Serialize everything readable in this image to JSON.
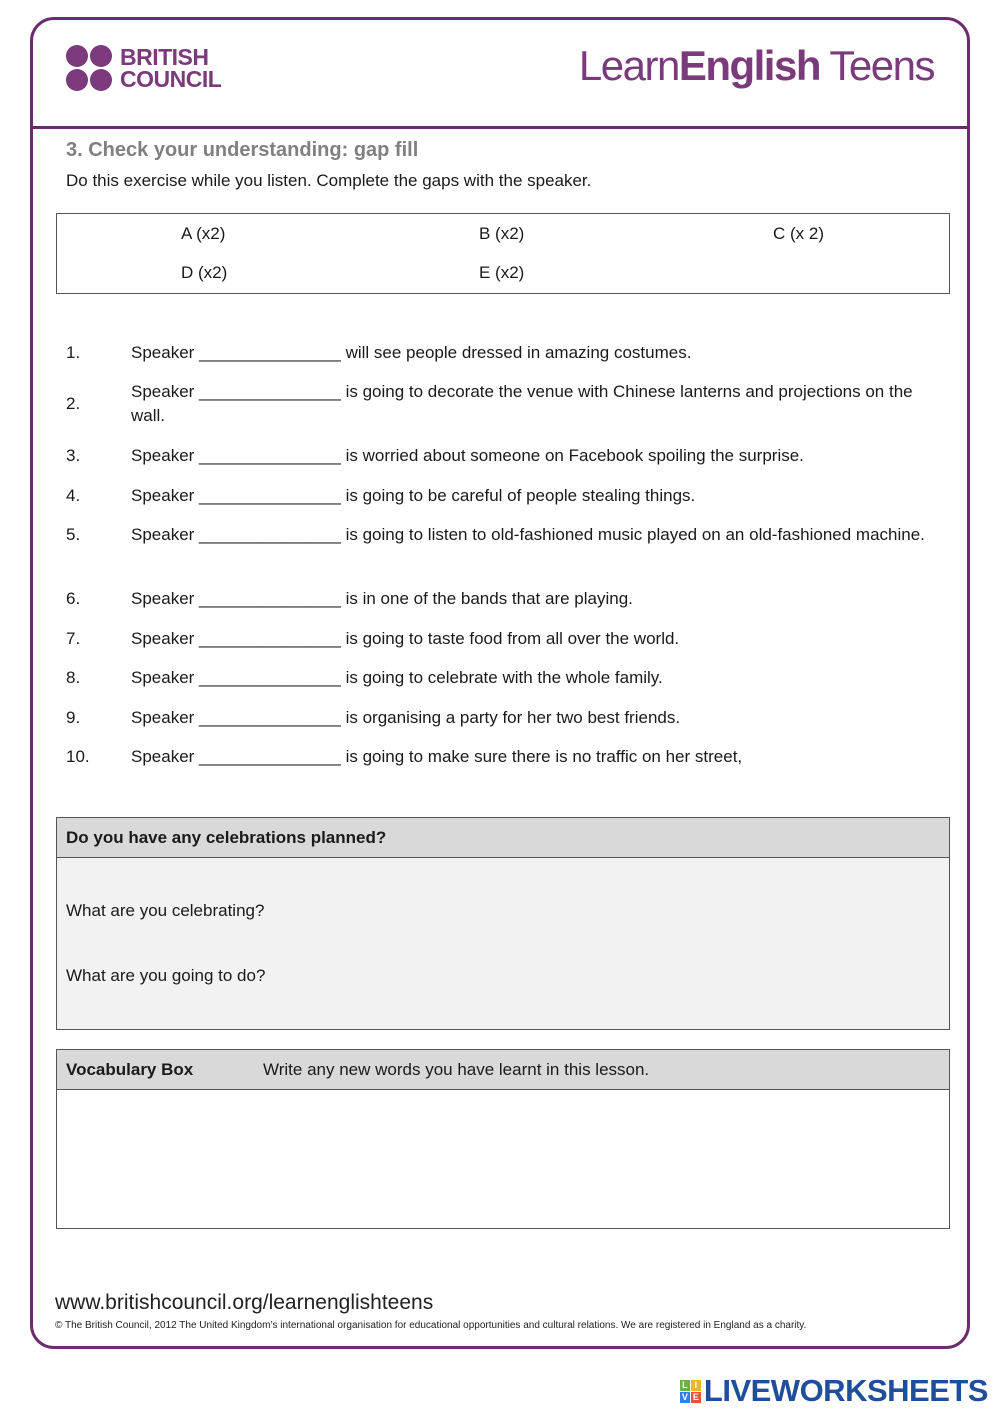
{
  "header": {
    "logo_left": "BRITISH COUNCIL",
    "logo_left_line1": "BRITISH",
    "logo_left_line2": "COUNCIL",
    "logo_right_light": "Learn",
    "logo_right_bold": "English",
    "logo_right_end": " Teens"
  },
  "section": {
    "title": "3. Check your understanding: gap fill",
    "instruction": "Do this exercise while you listen. Complete the gaps with the speaker."
  },
  "options": [
    "A (x2)",
    "B (x2)",
    "C (x 2)",
    "D (x2)",
    "E (x2)"
  ],
  "items": [
    {
      "num": "1.",
      "text": "Speaker _______________ will see people dressed in amazing costumes."
    },
    {
      "num": "2.",
      "text": "Speaker _______________ is going to decorate the venue with Chinese lanterns and projections on the wall."
    },
    {
      "num": "3.",
      "text": "Speaker _______________ is worried about someone on Facebook spoiling the surprise."
    },
    {
      "num": "4.",
      "text": "Speaker _______________ is going to be careful of people stealing things."
    },
    {
      "num": "5.",
      "text": "Speaker _______________ is going to listen to old-fashioned music played on an old-fashioned machine."
    },
    {
      "num": "6.",
      "text": "Speaker _______________ is in one of the bands that are playing."
    },
    {
      "num": "7.",
      "text": "Speaker _______________ is going to taste food from all over the world."
    },
    {
      "num": "8.",
      "text": "Speaker _______________ is going to celebrate with the whole family."
    },
    {
      "num": "9.",
      "text": "Speaker _______________ is organising a party for her two best friends."
    },
    {
      "num": "10.",
      "text": "Speaker _______________ is going to make sure there is no traffic on her street,"
    }
  ],
  "celebrations": {
    "heading": "Do you have any celebrations planned?",
    "q1": "What are you celebrating?",
    "q2": "What are you going to do?"
  },
  "vocab": {
    "heading": "Vocabulary Box",
    "instruction": "Write any new words you have learnt in this lesson."
  },
  "footer": {
    "url": "www.britishcouncil.org/learnenglishteens",
    "copyright": "© The British Council, 2012 The United Kingdom’s international organisation for educational opportunities and cultural relations. We are registered in England as a charity."
  },
  "watermark": {
    "text": "LIVEWORKSHEETS",
    "letters": [
      "L",
      "I",
      "V",
      "E"
    ]
  },
  "colors": {
    "brand": "#6b2c6e",
    "box_header": "#d9d9d9",
    "box_body": "#f2f2f2"
  }
}
